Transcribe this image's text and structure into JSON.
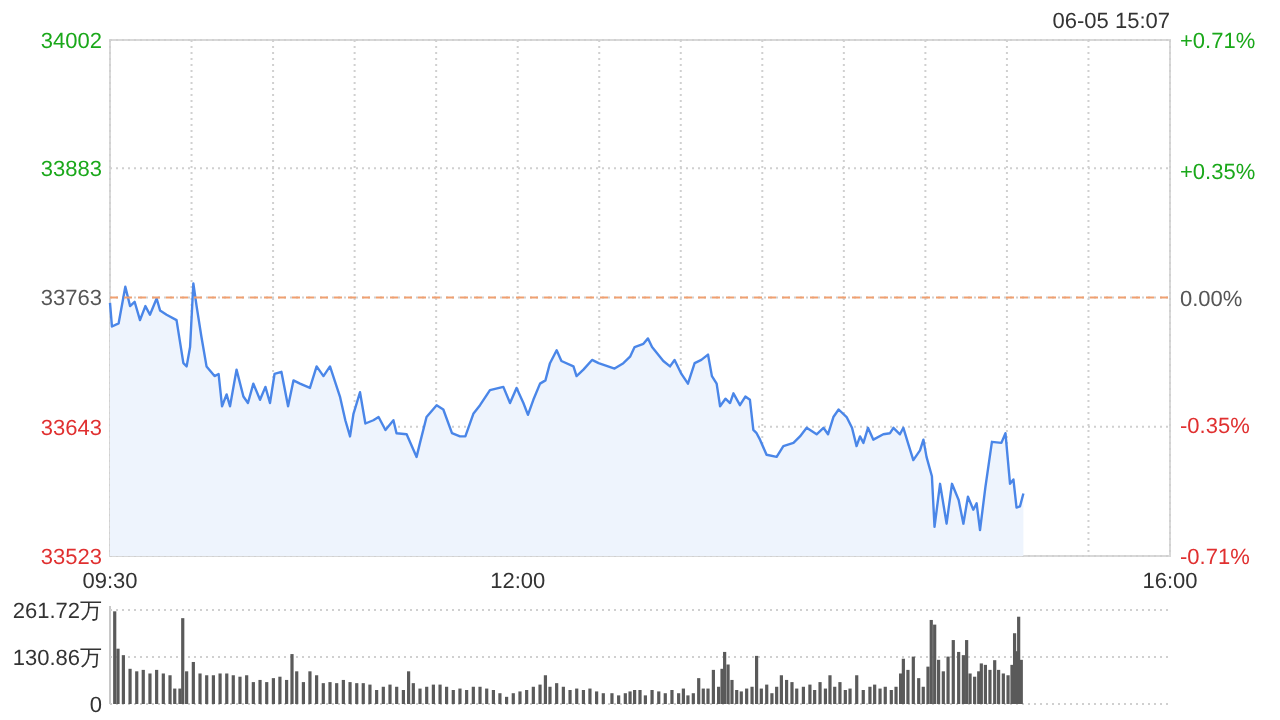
{
  "chart_data": [
    {
      "type": "area",
      "color": "#4a86e8",
      "x": [
        9.5,
        9.512,
        9.553,
        9.594,
        9.623,
        9.651,
        9.684,
        9.717,
        9.745,
        9.786,
        9.807,
        9.847,
        9.908,
        9.95,
        9.97,
        9.991,
        10.011,
        10.031,
        10.06,
        10.092,
        10.141,
        10.166,
        10.187,
        10.215,
        10.236,
        10.276,
        10.318,
        10.346,
        10.379,
        10.42,
        10.453,
        10.481,
        10.509,
        10.551,
        10.592,
        10.625,
        10.665,
        10.726,
        10.767,
        10.809,
        10.849,
        10.91,
        10.943,
        10.972,
        10.993,
        11.033,
        11.066,
        11.115,
        11.147,
        11.189,
        11.238,
        11.257,
        11.319,
        11.38,
        11.401,
        11.441,
        11.503,
        11.544,
        11.597,
        11.646,
        11.679,
        11.728,
        11.769,
        11.83,
        11.912,
        11.953,
        11.993,
        12.035,
        12.063,
        12.096,
        12.137,
        12.17,
        12.198,
        12.239,
        12.268,
        12.342,
        12.361,
        12.403,
        12.456,
        12.496,
        12.594,
        12.648,
        12.689,
        12.717,
        12.771,
        12.799,
        12.824,
        12.893,
        12.934,
        12.962,
        13.004,
        13.044,
        13.085,
        13.126,
        13.167,
        13.191,
        13.22,
        13.241,
        13.274,
        13.302,
        13.323,
        13.363,
        13.396,
        13.424,
        13.445,
        13.465,
        13.486,
        13.526,
        13.588,
        13.629,
        13.691,
        13.731,
        13.772,
        13.833,
        13.875,
        13.903,
        13.936,
        13.968,
        14.017,
        14.05,
        14.078,
        14.099,
        14.12,
        14.148,
        14.181,
        14.242,
        14.283,
        14.304,
        14.344,
        14.365,
        14.393,
        14.426,
        14.467,
        14.488,
        14.507,
        14.54,
        14.556,
        14.59,
        14.63,
        14.663,
        14.704,
        14.733,
        14.761,
        14.794,
        14.814,
        14.835,
        14.868,
        14.908,
        14.966,
        14.991,
        15.019,
        15.04,
        15.059,
        15.08,
        15.101
      ],
      "values": [
        33758,
        33736,
        33739,
        33773,
        33755,
        33759,
        33742,
        33755,
        33747,
        33762,
        33751,
        33747,
        33742,
        33702,
        33699,
        33717,
        33776,
        33755,
        33727,
        33699,
        33690,
        33692,
        33662,
        33673,
        33662,
        33696,
        33671,
        33665,
        33683,
        33668,
        33680,
        33665,
        33692,
        33694,
        33662,
        33686,
        33683,
        33679,
        33699,
        33690,
        33699,
        33671,
        33649,
        33634,
        33655,
        33675,
        33646,
        33649,
        33652,
        33640,
        33649,
        33637,
        33636,
        33615,
        33628,
        33652,
        33663,
        33659,
        33637,
        33634,
        33634,
        33655,
        33663,
        33677,
        33680,
        33665,
        33679,
        33665,
        33654,
        33668,
        33683,
        33686,
        33702,
        33714,
        33704,
        33699,
        33690,
        33696,
        33705,
        33702,
        33697,
        33702,
        33708,
        33717,
        33720,
        33725,
        33717,
        33704,
        33699,
        33705,
        33692,
        33683,
        33702,
        33705,
        33710,
        33690,
        33683,
        33662,
        33669,
        33665,
        33674,
        33663,
        33671,
        33668,
        33640,
        33637,
        33631,
        33617,
        33615,
        33625,
        33628,
        33634,
        33642,
        33636,
        33642,
        33636,
        33652,
        33659,
        33652,
        33642,
        33625,
        33634,
        33628,
        33642,
        33631,
        33636,
        33637,
        33642,
        33636,
        33642,
        33628,
        33612,
        33621,
        33631,
        33615,
        33597,
        33550,
        33590,
        33553,
        33590,
        33575,
        33553,
        33578,
        33566,
        33572,
        33547,
        33587,
        33629,
        33628,
        33637,
        33590,
        33594,
        33568,
        33569,
        33581
      ],
      "xlim": [
        9.5,
        16
      ],
      "xticks": [
        {
          "value": 9.5,
          "label": "09:30"
        },
        {
          "value": 10,
          "label": null
        },
        {
          "value": 10.5,
          "label": null
        },
        {
          "value": 11,
          "label": null
        },
        {
          "value": 11.5,
          "label": null
        },
        {
          "value": 12,
          "label": "12:00"
        },
        {
          "value": 12.5,
          "label": null
        },
        {
          "value": 13,
          "label": null
        },
        {
          "value": 13.5,
          "label": null
        },
        {
          "value": 14,
          "label": null
        },
        {
          "value": 14.5,
          "label": null
        },
        {
          "value": 15,
          "label": null
        },
        {
          "value": 15.5,
          "label": null
        },
        {
          "value": 16,
          "label": "16:00"
        }
      ],
      "ylim": [
        33523,
        34002
      ],
      "yticks": [
        33523,
        33643,
        33763,
        33883,
        34002
      ],
      "y2lim": [
        -0.71,
        0.71
      ],
      "y2ticks": [
        {
          "value": -0.71,
          "label": "-0.71%"
        },
        {
          "value": -0.35,
          "label": "-0.35%"
        },
        {
          "value": 0,
          "label": "0.00%"
        },
        {
          "value": 0.35,
          "label": "+0.35%"
        },
        {
          "value": 0.71,
          "label": "+0.71%"
        }
      ],
      "ref_lines": [
        {
          "axis": "y",
          "value": 33763,
          "color": "#f0a070",
          "line_style": "dashed"
        }
      ],
      "grid": true,
      "annotations": [
        "06-05 15:07"
      ]
    },
    {
      "type": "bar",
      "color": "#5a5a5a",
      "tick_labels": "y",
      "grid": "y",
      "x": [
        9.529,
        9.549,
        9.582,
        9.623,
        9.664,
        9.704,
        9.745,
        9.786,
        9.827,
        9.868,
        9.897,
        9.929,
        9.946,
        9.97,
        10.011,
        10.052,
        10.093,
        10.134,
        10.175,
        10.216,
        10.256,
        10.297,
        10.338,
        10.379,
        10.42,
        10.461,
        10.502,
        10.542,
        10.583,
        10.616,
        10.645,
        10.686,
        10.726,
        10.767,
        10.808,
        10.849,
        10.89,
        10.931,
        10.972,
        11.013,
        11.053,
        11.094,
        11.135,
        11.176,
        11.217,
        11.258,
        11.299,
        11.331,
        11.36,
        11.401,
        11.442,
        11.483,
        11.524,
        11.564,
        11.605,
        11.646,
        11.687,
        11.728,
        11.769,
        11.81,
        11.851,
        11.891,
        11.932,
        11.973,
        12.014,
        12.055,
        12.096,
        12.137,
        12.17,
        12.198,
        12.239,
        12.28,
        12.321,
        12.362,
        12.403,
        12.443,
        12.484,
        12.525,
        12.578,
        12.619,
        12.66,
        12.689,
        12.717,
        12.75,
        12.783,
        12.824,
        12.865,
        12.905,
        12.946,
        12.987,
        13.016,
        13.044,
        13.077,
        13.11,
        13.138,
        13.167,
        13.2,
        13.232,
        13.253,
        13.269,
        13.29,
        13.314,
        13.343,
        13.371,
        13.404,
        13.437,
        13.465,
        13.494,
        13.527,
        13.559,
        13.588,
        13.617,
        13.649,
        13.682,
        13.711,
        13.752,
        13.792,
        13.821,
        13.854,
        13.887,
        13.915,
        13.944,
        13.976,
        14.009,
        14.038,
        14.079,
        14.119,
        14.16,
        14.189,
        14.222,
        14.254,
        14.291,
        14.32,
        14.348,
        14.365,
        14.393,
        14.426,
        14.459,
        14.487,
        14.516,
        14.536,
        14.557,
        14.581,
        14.61,
        14.639,
        14.671,
        14.704,
        14.733,
        14.753,
        14.774,
        14.802,
        14.827,
        14.843,
        14.868,
        14.896,
        14.925,
        14.949,
        14.978,
        15.007,
        15.031,
        15.047,
        15.06,
        15.072,
        15.088
      ],
      "values": [
        258,
        154,
        136,
        98,
        91,
        95,
        85,
        95,
        85,
        80,
        43,
        43,
        239,
        91,
        117,
        85,
        80,
        80,
        85,
        85,
        80,
        76,
        80,
        61,
        67,
        61,
        72,
        76,
        67,
        139,
        91,
        61,
        91,
        80,
        58,
        61,
        58,
        67,
        61,
        58,
        58,
        54,
        39,
        48,
        54,
        48,
        39,
        91,
        58,
        43,
        48,
        54,
        54,
        48,
        39,
        43,
        39,
        48,
        48,
        43,
        39,
        30,
        20,
        30,
        35,
        39,
        48,
        54,
        80,
        48,
        58,
        48,
        39,
        43,
        39,
        43,
        35,
        30,
        30,
        24,
        30,
        35,
        39,
        39,
        24,
        39,
        35,
        30,
        39,
        30,
        43,
        24,
        30,
        72,
        43,
        43,
        95,
        48,
        98,
        145,
        110,
        67,
        39,
        35,
        43,
        48,
        134,
        43,
        54,
        30,
        48,
        80,
        67,
        61,
        43,
        48,
        54,
        39,
        61,
        43,
        80,
        48,
        61,
        39,
        43,
        80,
        39,
        48,
        54,
        43,
        48,
        39,
        48,
        85,
        126,
        95,
        132,
        72,
        48,
        104,
        234,
        221,
        123,
        91,
        132,
        178,
        145,
        136,
        178,
        85,
        76,
        91,
        113,
        109,
        95,
        122,
        95,
        85,
        80,
        109,
        197,
        147,
        243,
        123
      ],
      "xlim": [
        9.5,
        16
      ],
      "ylim": [
        0,
        261.72
      ],
      "yticks": [
        {
          "value": 0,
          "label": "0"
        },
        {
          "value": 130.86,
          "label": "130.86万"
        },
        {
          "value": 261.72,
          "label": "261.72万"
        }
      ]
    }
  ]
}
